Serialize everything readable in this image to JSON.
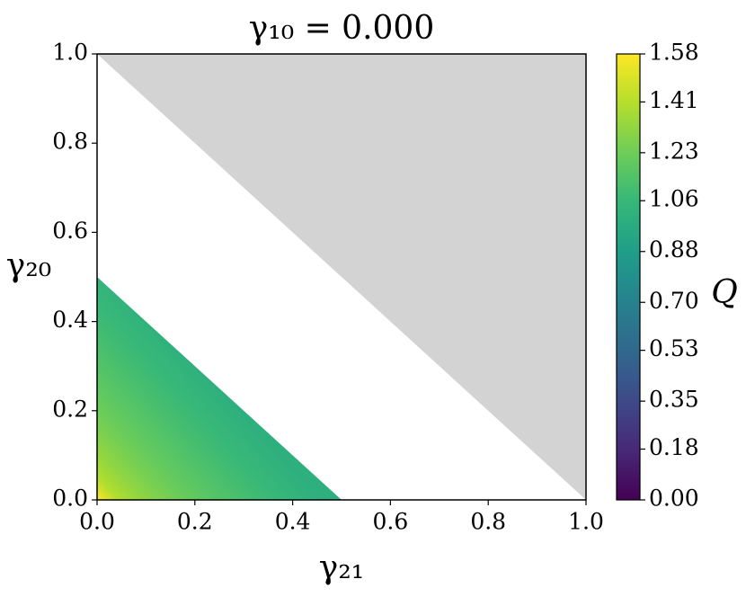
{
  "chart_data": {
    "type": "heatmap",
    "title": "γ₁₀ = 0.000",
    "x_label": "γ₂₁",
    "y_label": "γ₂₀",
    "xlim": [
      0,
      1
    ],
    "ylim": [
      0,
      1
    ],
    "xticks": [
      {
        "value": 0,
        "label": "0.0"
      },
      {
        "value": 0.2,
        "label": "0.2"
      },
      {
        "value": 0.4,
        "label": "0.4"
      },
      {
        "value": 0.6,
        "label": "0.6"
      },
      {
        "value": 0.8,
        "label": "0.8"
      },
      {
        "value": 1,
        "label": "1.0"
      }
    ],
    "yticks": [
      {
        "value": 0,
        "label": "0.0"
      },
      {
        "value": 0.2,
        "label": "0.2"
      },
      {
        "value": 0.4,
        "label": "0.4"
      },
      {
        "value": 0.6,
        "label": "0.6"
      },
      {
        "value": 0.8,
        "label": "0.8"
      },
      {
        "value": 1,
        "label": "1.0"
      }
    ],
    "colored_region_sum_limit": 0.5,
    "gray_region_sum_limit": 1,
    "gray_color": "#d3d3d3",
    "value_at_origin": 1.58,
    "value_at_edge": 1.0,
    "colorbar": {
      "label": "Q",
      "lim": [
        0,
        1.58
      ],
      "ticks": [
        {
          "value": 0,
          "label": "0.00"
        },
        0.18,
        0.35,
        0.53,
        {
          "value": 0.7,
          "label": "0.70"
        },
        0.88,
        1.06,
        1.23,
        1.41,
        1.58
      ]
    }
  }
}
